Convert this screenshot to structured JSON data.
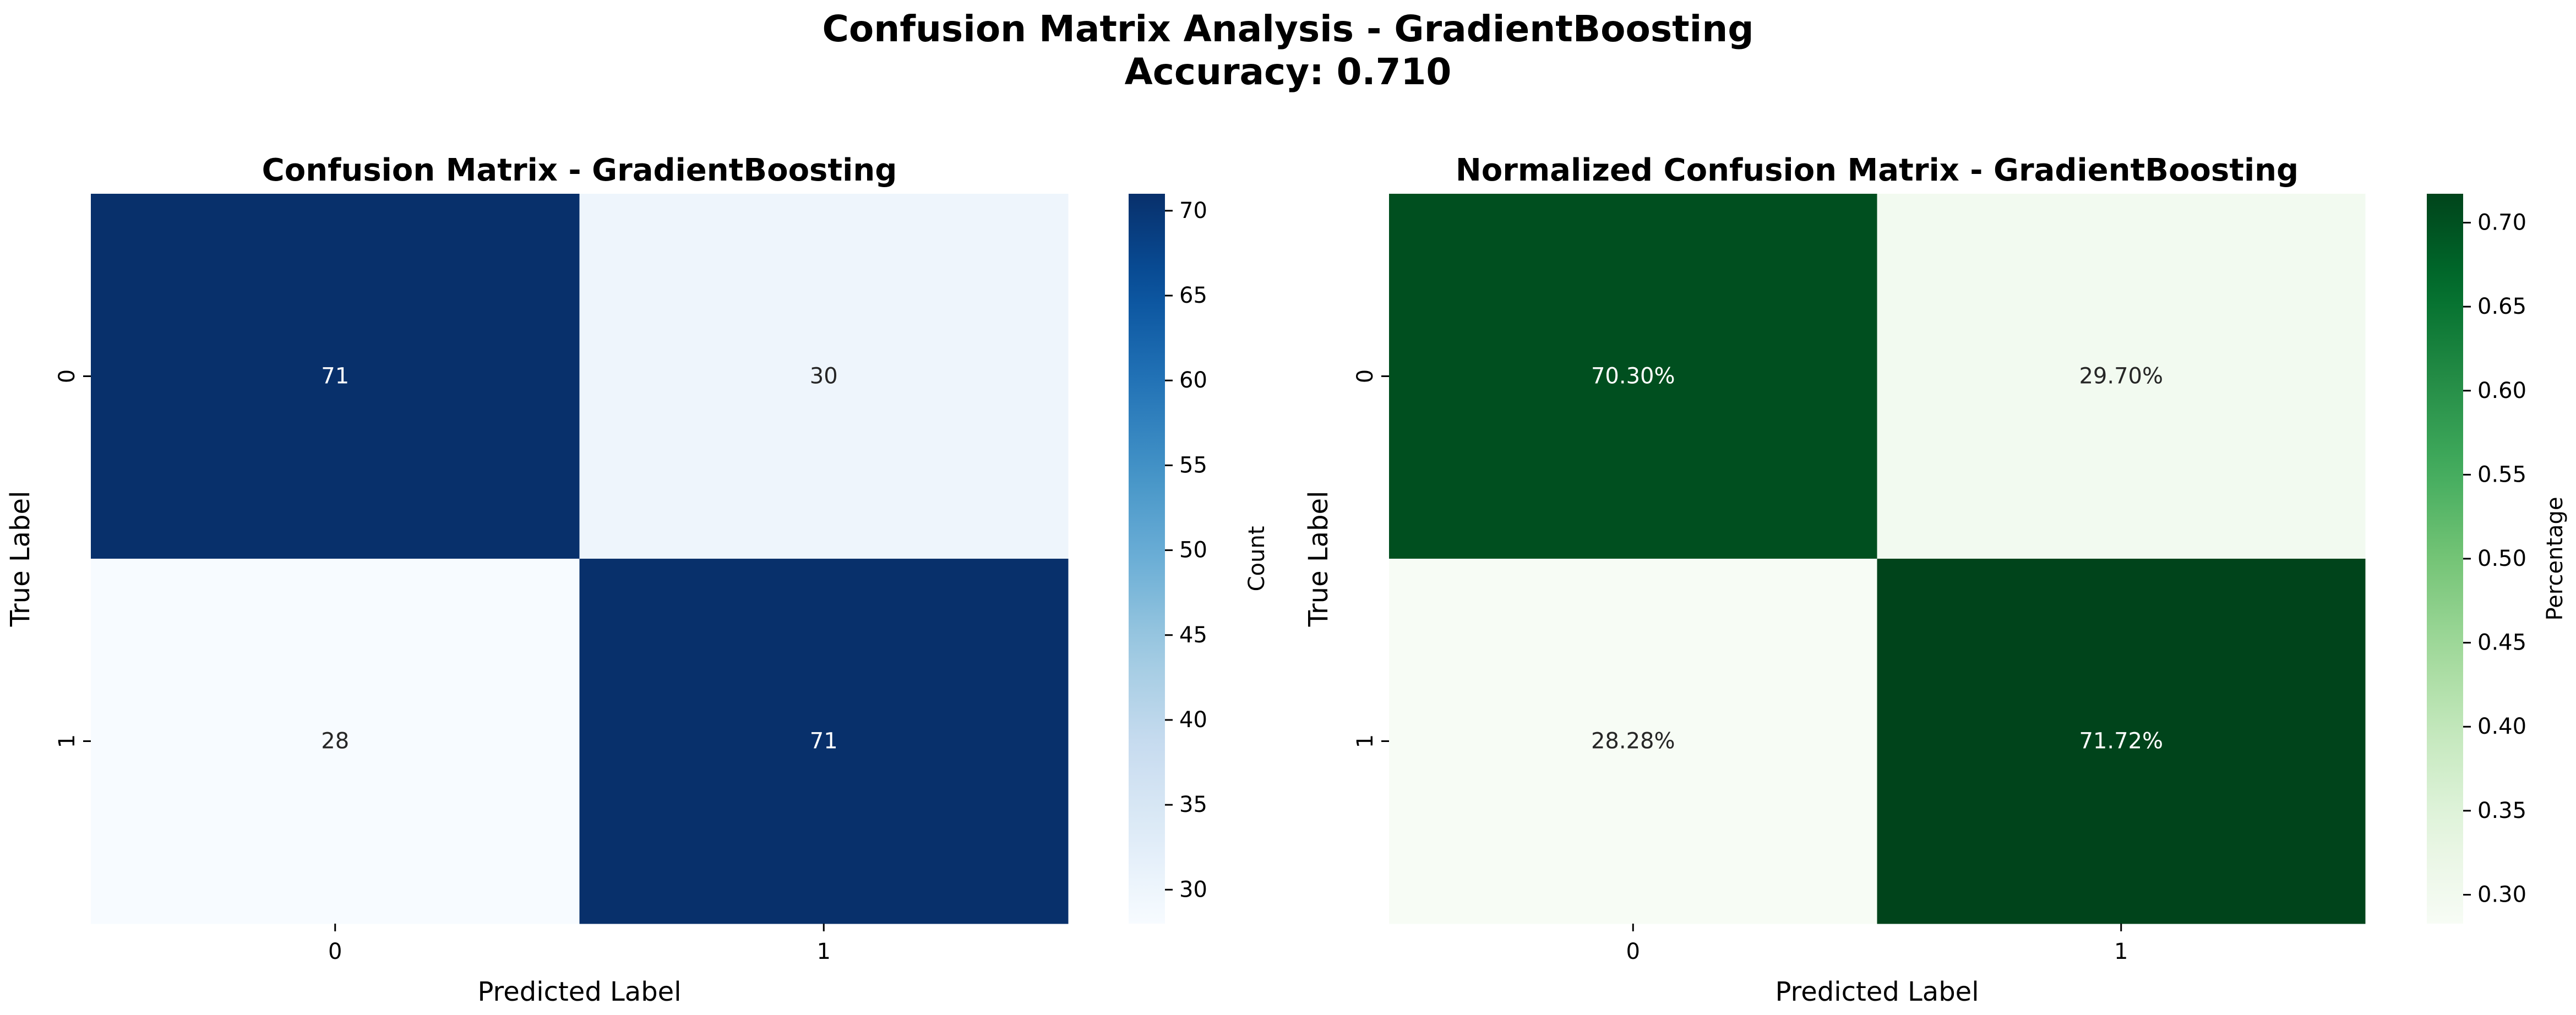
{
  "figure": {
    "title_line1": "Confusion Matrix Analysis - GradientBoosting",
    "title_line2": "Accuracy: 0.710"
  },
  "chart_data": [
    {
      "type": "heatmap",
      "title": "Confusion Matrix - GradientBoosting",
      "xlabel": "Predicted Label",
      "ylabel": "True Label",
      "x_categories": [
        "0",
        "1"
      ],
      "y_categories": [
        "0",
        "1"
      ],
      "values": [
        [
          71,
          30
        ],
        [
          28,
          71
        ]
      ],
      "annotations": [
        [
          "71",
          "30"
        ],
        [
          "28",
          "71"
        ]
      ],
      "colormap": "Blues",
      "color_low": "#f7fbff",
      "color_high": "#08306b",
      "colorbar": {
        "label": "Count",
        "range": [
          28,
          71
        ],
        "ticks": [
          30,
          35,
          40,
          45,
          50,
          55,
          60,
          65,
          70
        ],
        "tick_labels": [
          "30",
          "35",
          "40",
          "45",
          "50",
          "55",
          "60",
          "65",
          "70"
        ]
      }
    },
    {
      "type": "heatmap",
      "title": "Normalized Confusion Matrix - GradientBoosting",
      "xlabel": "Predicted Label",
      "ylabel": "True Label",
      "x_categories": [
        "0",
        "1"
      ],
      "y_categories": [
        "0",
        "1"
      ],
      "values": [
        [
          0.703,
          0.297
        ],
        [
          0.2828,
          0.7172
        ]
      ],
      "annotations": [
        [
          "70.30%",
          "29.70%"
        ],
        [
          "28.28%",
          "71.72%"
        ]
      ],
      "colormap": "Greens",
      "color_low": "#f7fcf5",
      "color_high": "#00441b",
      "colorbar": {
        "label": "Percentage",
        "range": [
          0.2828,
          0.7172
        ],
        "ticks": [
          0.3,
          0.35,
          0.4,
          0.45,
          0.5,
          0.55,
          0.6,
          0.65,
          0.7
        ],
        "tick_labels": [
          "0.30",
          "0.35",
          "0.40",
          "0.45",
          "0.50",
          "0.55",
          "0.60",
          "0.65",
          "0.70"
        ]
      }
    }
  ]
}
